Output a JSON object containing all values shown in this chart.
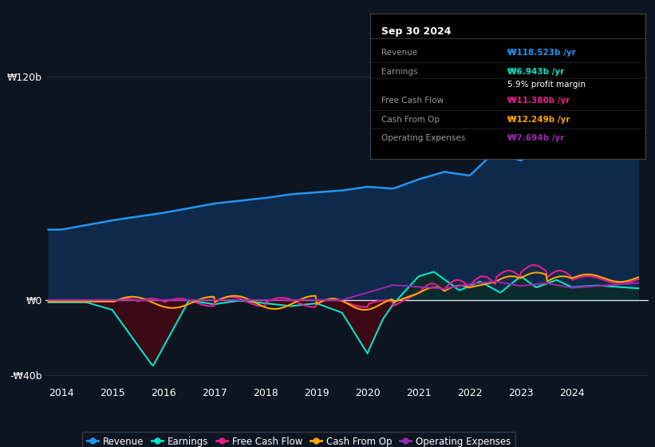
{
  "background_color": "#0d1520",
  "plot_bg_color": "#0d1520",
  "revenue_color": "#2196f3",
  "earnings_color": "#00e5c8",
  "free_cash_flow_color": "#e91e8c",
  "cash_from_op_color": "#ffa500",
  "operating_expenses_color": "#9c27b0",
  "revenue_fill": "#0d2a4a",
  "earnings_neg_fill": "#3a0a18",
  "ylim": [
    -45,
    130
  ],
  "xlim_left": 2013.7,
  "xlim_right": 2025.5,
  "yticks": [
    -40,
    0,
    120
  ],
  "ytick_labels": [
    "-₩40b",
    "₩0",
    "₩120b"
  ],
  "xticks": [
    2014,
    2015,
    2016,
    2017,
    2018,
    2019,
    2020,
    2021,
    2022,
    2023,
    2024
  ],
  "legend_items": [
    "Revenue",
    "Earnings",
    "Free Cash Flow",
    "Cash From Op",
    "Operating Expenses"
  ],
  "tooltip_title": "Sep 30 2024",
  "tooltip_items": [
    {
      "label": "Revenue",
      "value": "₩118.523b /yr",
      "color": "#2196f3"
    },
    {
      "label": "Earnings",
      "value": "₩6.943b /yr",
      "color": "#00e5c8"
    },
    {
      "label": "",
      "value": "5.9% profit margin",
      "color": "#ffffff"
    },
    {
      "label": "Free Cash Flow",
      "value": "₩11.380b /yr",
      "color": "#e91e8c"
    },
    {
      "label": "Cash From Op",
      "value": "₩12.249b /yr",
      "color": "#ffa500"
    },
    {
      "label": "Operating Expenses",
      "value": "₩7.694b /yr",
      "color": "#9c27b0"
    }
  ]
}
